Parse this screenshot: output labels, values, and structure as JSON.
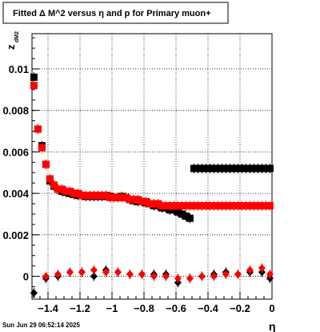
{
  "chart_data": {
    "type": "scatter",
    "title": "Fitted Δ M^2 versus η and p for Primary muon+",
    "xlabel": "η",
    "ylabel": "z",
    "ylabel_sub": "dM2",
    "xlim": [
      -1.5,
      0.0
    ],
    "ylim": [
      -0.0011,
      0.0117
    ],
    "x_ticks": [
      -1.4,
      -1.2,
      -1.0,
      -0.8,
      -0.6,
      -0.4,
      -0.2,
      0.0
    ],
    "x_tick_labels": [
      "−1.4",
      "−1.2",
      "−1",
      "−0.8",
      "−0.6",
      "−0.4",
      "−0.2",
      "0"
    ],
    "y_ticks": [
      0.0,
      0.002,
      0.004,
      0.006,
      0.008,
      0.01
    ],
    "y_tick_labels": [
      "0",
      "0.002",
      "0.004",
      "0.006",
      "0.008",
      "0.01"
    ],
    "grid": true,
    "series": [
      {
        "marker": "square",
        "color": "#000000",
        "x": [
          -1.488,
          -1.463,
          -1.438,
          -1.413,
          -1.388,
          -1.363,
          -1.338,
          -1.313,
          -1.288,
          -1.263,
          -1.238,
          -1.213,
          -1.188,
          -1.163,
          -1.138,
          -1.113,
          -1.088,
          -1.063,
          -1.038,
          -1.013,
          -0.988,
          -0.963,
          -0.938,
          -0.913,
          -0.888,
          -0.863,
          -0.838,
          -0.813,
          -0.788,
          -0.763,
          -0.738,
          -0.713,
          -0.688,
          -0.663,
          -0.638,
          -0.613,
          -0.588,
          -0.563,
          -0.538,
          -0.513,
          -0.488,
          -0.463,
          -0.438,
          -0.413,
          -0.388,
          -0.363,
          -0.338,
          -0.313,
          -0.288,
          -0.263,
          -0.238,
          -0.213,
          -0.188,
          -0.163,
          -0.138,
          -0.113,
          -0.088,
          -0.063,
          -0.038,
          -0.013
        ],
        "y": [
          0.0096,
          0.0071,
          0.0063,
          0.0054,
          0.0046,
          0.00435,
          0.0042,
          0.0041,
          0.00405,
          0.004,
          0.00395,
          0.0039,
          0.0039,
          0.00385,
          0.00385,
          0.00385,
          0.00385,
          0.00385,
          0.0039,
          0.00385,
          0.0038,
          0.0038,
          0.00385,
          0.0038,
          0.0037,
          0.00365,
          0.0036,
          0.0036,
          0.00355,
          0.0035,
          0.0034,
          0.0034,
          0.0033,
          0.0033,
          0.0032,
          0.0032,
          0.0031,
          0.003,
          0.0029,
          0.0028,
          0.0052,
          0.0052,
          0.0052,
          0.0052,
          0.0052,
          0.0052,
          0.0052,
          0.0052,
          0.0052,
          0.0052,
          0.0052,
          0.0052,
          0.0052,
          0.0052,
          0.0052,
          0.0052,
          0.0052,
          0.0052,
          0.0052,
          0.0052
        ]
      },
      {
        "marker": "square",
        "color": "#ff0000",
        "x": [
          -1.488,
          -1.463,
          -1.438,
          -1.413,
          -1.388,
          -1.363,
          -1.338,
          -1.313,
          -1.288,
          -1.263,
          -1.238,
          -1.213,
          -1.188,
          -1.163,
          -1.138,
          -1.113,
          -1.088,
          -1.063,
          -1.038,
          -1.013,
          -0.988,
          -0.963,
          -0.938,
          -0.913,
          -0.888,
          -0.863,
          -0.838,
          -0.813,
          -0.788,
          -0.763,
          -0.738,
          -0.713,
          -0.688,
          -0.663,
          -0.638,
          -0.613,
          -0.588,
          -0.563,
          -0.538,
          -0.513,
          -0.488,
          -0.463,
          -0.438,
          -0.413,
          -0.388,
          -0.363,
          -0.338,
          -0.313,
          -0.288,
          -0.263,
          -0.238,
          -0.213,
          -0.188,
          -0.163,
          -0.138,
          -0.113,
          -0.088,
          -0.063,
          -0.038,
          -0.013
        ],
        "y": [
          0.0092,
          0.0071,
          0.0062,
          0.0054,
          0.0047,
          0.0044,
          0.0042,
          0.0042,
          0.0041,
          0.0041,
          0.004,
          0.004,
          0.0039,
          0.0039,
          0.0039,
          0.0039,
          0.0039,
          0.0039,
          0.0039,
          0.0038,
          0.0038,
          0.0038,
          0.0038,
          0.0038,
          0.0037,
          0.0037,
          0.0037,
          0.0036,
          0.0036,
          0.0035,
          0.0035,
          0.0035,
          0.0034,
          0.0034,
          0.0034,
          0.0034,
          0.0034,
          0.0034,
          0.0034,
          0.0034,
          0.0034,
          0.0034,
          0.0034,
          0.0034,
          0.0034,
          0.0034,
          0.0034,
          0.0034,
          0.0034,
          0.0034,
          0.0034,
          0.0034,
          0.0034,
          0.0034,
          0.0034,
          0.0034,
          0.0034,
          0.0034,
          0.0034,
          0.0034
        ]
      },
      {
        "marker": "diamond",
        "color": "#000000",
        "x": [
          -1.488,
          -1.413,
          -1.338,
          -1.263,
          -1.188,
          -1.113,
          -1.038,
          -0.963,
          -0.888,
          -0.813,
          -0.738,
          -0.663,
          -0.588,
          -0.513,
          -0.438,
          -0.363,
          -0.288,
          -0.213,
          -0.138,
          -0.063,
          -0.013
        ],
        "y": [
          -0.0008,
          -0.0001,
          0.0,
          0.0002,
          0.0002,
          0.0,
          0.0003,
          0.0002,
          0.0001,
          0.0001,
          0.0001,
          0.0001,
          -0.0003,
          -0.0001,
          0.0,
          0.0001,
          0.0002,
          0.0001,
          0.0002,
          0.0002,
          -0.0001
        ]
      },
      {
        "marker": "diamond",
        "color": "#ff0000",
        "x": [
          -1.413,
          -1.338,
          -1.263,
          -1.188,
          -1.113,
          -1.038,
          -0.963,
          -0.888,
          -0.813,
          -0.738,
          -0.663,
          -0.588,
          -0.513,
          -0.438,
          -0.363,
          -0.288,
          -0.213,
          -0.138,
          -0.063,
          -0.013
        ],
        "y": [
          0.0,
          0.0001,
          0.0002,
          0.0002,
          0.0003,
          0.0002,
          0.0002,
          0.0001,
          0.0001,
          0.0,
          0.0,
          -0.0001,
          -0.0001,
          0.0,
          0.0,
          0.0001,
          0.0001,
          0.0003,
          0.0004,
          0.0001
        ]
      }
    ]
  },
  "footer": {
    "timestamp": "Sun Jun 29 06:52:14 2025"
  }
}
